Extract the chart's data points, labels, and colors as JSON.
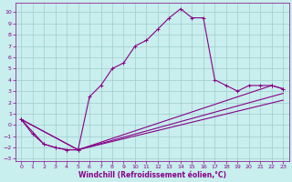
{
  "xlabel": "Windchill (Refroidissement éolien,°C)",
  "background_color": "#c8eeed",
  "grid_color": "#a0cccc",
  "line_color": "#880088",
  "xlim": [
    -0.5,
    23.5
  ],
  "ylim": [
    -3.2,
    10.8
  ],
  "xticks": [
    0,
    1,
    2,
    3,
    4,
    5,
    6,
    7,
    8,
    9,
    10,
    11,
    12,
    13,
    14,
    15,
    16,
    17,
    18,
    19,
    20,
    21,
    22,
    23
  ],
  "yticks": [
    -3,
    -2,
    -1,
    0,
    1,
    2,
    3,
    4,
    5,
    6,
    7,
    8,
    9,
    10
  ],
  "curves": [
    {
      "x": [
        0,
        1,
        2,
        3,
        4,
        5,
        6,
        7,
        8,
        9,
        10,
        11,
        12,
        13,
        14,
        15,
        16,
        17,
        18,
        19,
        20,
        21,
        22,
        23
      ],
      "y": [
        0.5,
        -0.8,
        -1.7,
        -2.0,
        -2.2,
        -2.2,
        2.5,
        3.5,
        5.0,
        5.5,
        7.0,
        7.5,
        8.5,
        9.5,
        10.3,
        9.5,
        9.5,
        4.0,
        3.5,
        3.0,
        3.5,
        3.5,
        3.5,
        3.2
      ],
      "marker": true
    },
    {
      "x": [
        0,
        2,
        3,
        4,
        5,
        22,
        23
      ],
      "y": [
        0.5,
        -1.7,
        -2.0,
        -2.2,
        -2.2,
        3.5,
        3.2
      ],
      "marker": true
    },
    {
      "x": [
        0,
        5,
        23
      ],
      "y": [
        0.5,
        -2.2,
        2.8
      ],
      "marker": false
    },
    {
      "x": [
        0,
        5,
        23
      ],
      "y": [
        0.5,
        -2.2,
        2.2
      ],
      "marker": false
    }
  ],
  "marker_symbol": "+",
  "marker_size": 3,
  "line_width": 0.8,
  "tick_fontsize": 4.5,
  "label_fontsize": 5.5,
  "tick_label_color": "#880088",
  "label_fontweight": "bold"
}
